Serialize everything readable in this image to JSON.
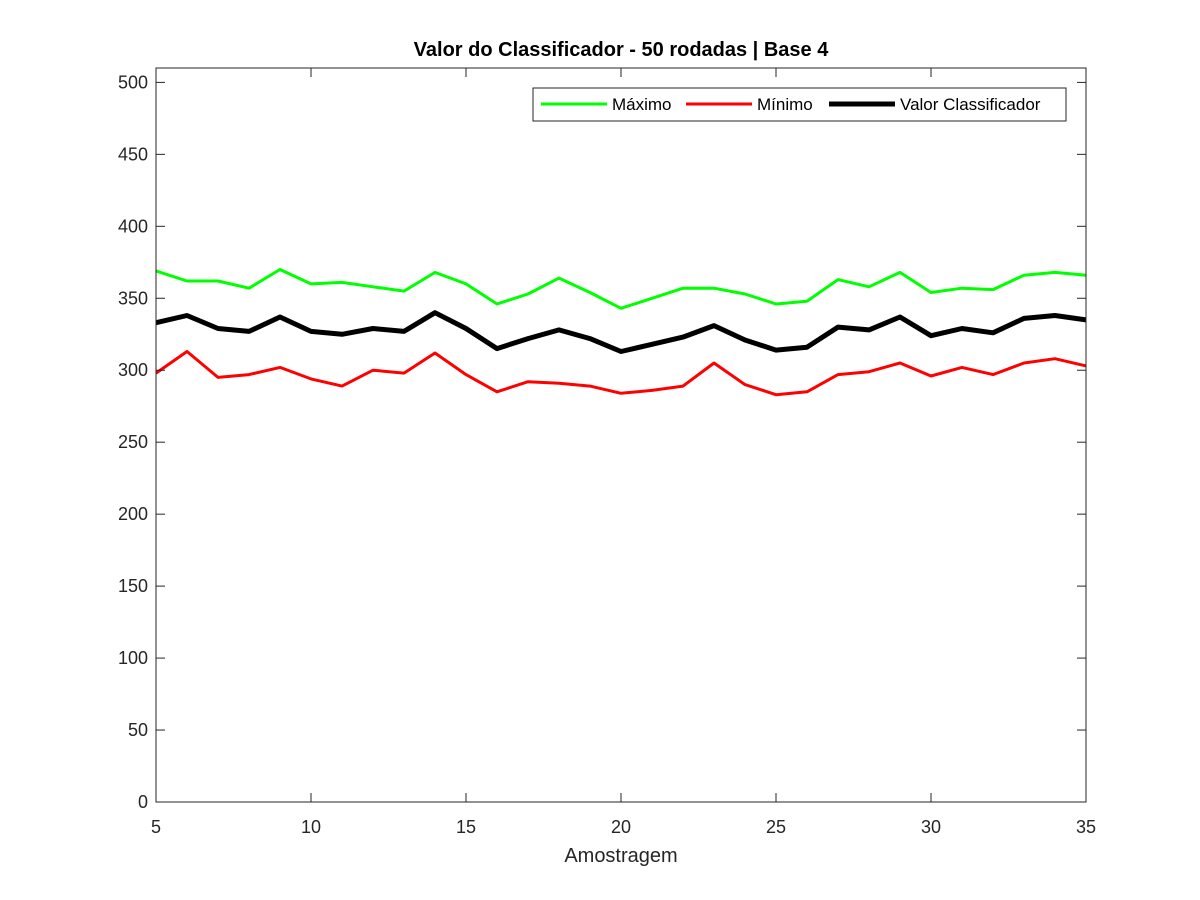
{
  "chart_data": {
    "type": "line",
    "title": "Valor do Classificador - 50 rodadas | Base 4",
    "xlabel": "Amostragem",
    "ylabel": "",
    "xlim": [
      5,
      35
    ],
    "ylim": [
      0,
      510
    ],
    "xticks": [
      5,
      10,
      15,
      20,
      25,
      30,
      35
    ],
    "yticks": [
      0,
      50,
      100,
      150,
      200,
      250,
      300,
      350,
      400,
      450,
      500
    ],
    "grid": false,
    "legend_position": "top-right",
    "x": [
      5,
      6,
      7,
      8,
      9,
      10,
      11,
      12,
      13,
      14,
      15,
      16,
      17,
      18,
      19,
      20,
      21,
      22,
      23,
      24,
      25,
      26,
      27,
      28,
      29,
      30,
      31,
      32,
      33,
      34,
      35
    ],
    "series": [
      {
        "name": "Máximo",
        "color": "#00ff00",
        "width": 3,
        "values": [
          369,
          362,
          362,
          357,
          370,
          360,
          361,
          358,
          355,
          368,
          360,
          346,
          353,
          364,
          354,
          343,
          350,
          357,
          357,
          353,
          346,
          348,
          363,
          358,
          368,
          354,
          357,
          356,
          366,
          368,
          366
        ]
      },
      {
        "name": "Mínimo",
        "color": "#ff0000",
        "width": 3,
        "values": [
          298,
          313,
          295,
          297,
          302,
          294,
          289,
          300,
          298,
          312,
          297,
          285,
          292,
          291,
          289,
          284,
          286,
          289,
          305,
          290,
          283,
          285,
          297,
          299,
          305,
          296,
          302,
          297,
          305,
          308,
          303
        ]
      },
      {
        "name": "Valor Classificador",
        "color": "#000000",
        "width": 5,
        "values": [
          333,
          338,
          329,
          327,
          337,
          327,
          325,
          329,
          327,
          340,
          329,
          315,
          322,
          328,
          322,
          313,
          318,
          323,
          331,
          321,
          314,
          316,
          330,
          328,
          337,
          324,
          329,
          326,
          336,
          338,
          335
        ]
      }
    ]
  }
}
